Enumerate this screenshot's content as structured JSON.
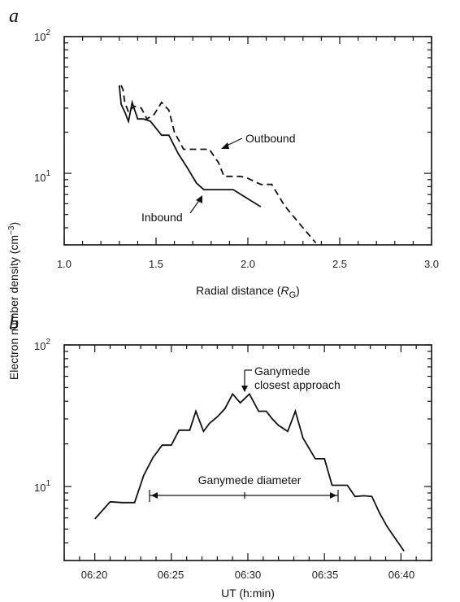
{
  "chart_data": [
    {
      "panel_label": "a",
      "type": "line",
      "xlabel": "Radial distance (R_G)",
      "xlabel_parts": [
        "Radial distance (",
        "R",
        "G",
        ")"
      ],
      "ylabel": "Electron number density (cm^-3)",
      "ylabel_parts": [
        "Electron number density (cm",
        "−3",
        ")"
      ],
      "xlim": [
        1.0,
        3.0
      ],
      "ylim": [
        3,
        100
      ],
      "yscale": "log",
      "x_ticks": [
        "1.0",
        "1.5",
        "2.0",
        "2.5",
        "3.0"
      ],
      "y_ticks": [
        {
          "base": "10",
          "exp": "2"
        },
        {
          "base": "10",
          "exp": "1"
        }
      ],
      "series": [
        {
          "name": "Inbound",
          "style": "solid",
          "x": [
            1.3,
            1.31,
            1.33,
            1.35,
            1.37,
            1.4,
            1.43,
            1.47,
            1.53,
            1.57,
            1.62,
            1.67,
            1.72,
            1.76,
            1.86,
            1.92,
            2.07
          ],
          "y": [
            44,
            32,
            28,
            24,
            33,
            25,
            25,
            24,
            19,
            19,
            14,
            11,
            8.5,
            7.6,
            7.6,
            7.6,
            5.7
          ]
        },
        {
          "name": "Outbound",
          "style": "dashed",
          "x": [
            1.31,
            1.32,
            1.33,
            1.35,
            1.38,
            1.42,
            1.45,
            1.49,
            1.53,
            1.57,
            1.6,
            1.65,
            1.75,
            1.79,
            1.84,
            1.87,
            1.96,
            2.0,
            2.07,
            2.13,
            2.2,
            2.28,
            2.37
          ],
          "y": [
            44,
            41,
            33,
            28,
            31,
            30,
            25,
            27,
            33,
            29,
            20,
            15,
            15,
            15,
            12,
            9.5,
            9.5,
            9.2,
            8.3,
            8.3,
            5.8,
            4.3,
            3.1
          ]
        }
      ],
      "annotations": [
        {
          "text": "Outbound",
          "target_series": "Outbound",
          "target_x": 1.8,
          "target_y": 15
        },
        {
          "text": "Inbound",
          "target_series": "Inbound",
          "target_x": 1.74,
          "target_y": 8
        }
      ]
    },
    {
      "panel_label": "b",
      "type": "line",
      "xlabel": "UT (h:min)",
      "ylabel": "Electron number density (cm^-3)",
      "xlim": [
        "06:18",
        "06:42"
      ],
      "ylim": [
        3,
        100
      ],
      "yscale": "log",
      "x_ticks": [
        "06:20",
        "06:25",
        "06:30",
        "06:35",
        "06:40"
      ],
      "y_ticks": [
        {
          "base": "10",
          "exp": "2"
        },
        {
          "base": "10",
          "exp": "1"
        }
      ],
      "series": [
        {
          "name": "",
          "style": "solid",
          "x": [
            "06:20:00",
            "06:21:00",
            "06:21:48",
            "06:22:36",
            "06:23:12",
            "06:23:48",
            "06:24:24",
            "06:25:00",
            "06:25:30",
            "06:26:12",
            "06:26:36",
            "06:27:06",
            "06:27:30",
            "06:28:00",
            "06:28:30",
            "06:29:00",
            "06:29:30",
            "06:30:06",
            "06:30:42",
            "06:31:12",
            "06:31:36",
            "06:32:00",
            "06:32:36",
            "06:33:06",
            "06:33:36",
            "06:34:24",
            "06:35:00",
            "06:35:30",
            "06:36:30",
            "06:37:00",
            "06:37:36",
            "06:38:06",
            "06:38:36",
            "06:39:06",
            "06:39:30",
            "06:40:12"
          ],
          "y": [
            5.9,
            7.8,
            7.7,
            7.7,
            12,
            16,
            19.6,
            19.6,
            25,
            25,
            34,
            24.5,
            28,
            31,
            35.5,
            45,
            39,
            45,
            34,
            34,
            30,
            27,
            24.5,
            34,
            22,
            15.7,
            15.7,
            10.2,
            10.2,
            8.5,
            8.6,
            8.5,
            6.5,
            5.2,
            4.5,
            3.5
          ]
        }
      ],
      "annotations": [
        {
          "text": "Ganymede\nclosest approach",
          "lines": [
            "Ganymede",
            "closest approach"
          ],
          "target_x": "06:29:05",
          "target_y": 47
        },
        {
          "text": "Ganymede diameter",
          "span": [
            "06:23:18",
            "06:35:00"
          ]
        }
      ]
    }
  ]
}
